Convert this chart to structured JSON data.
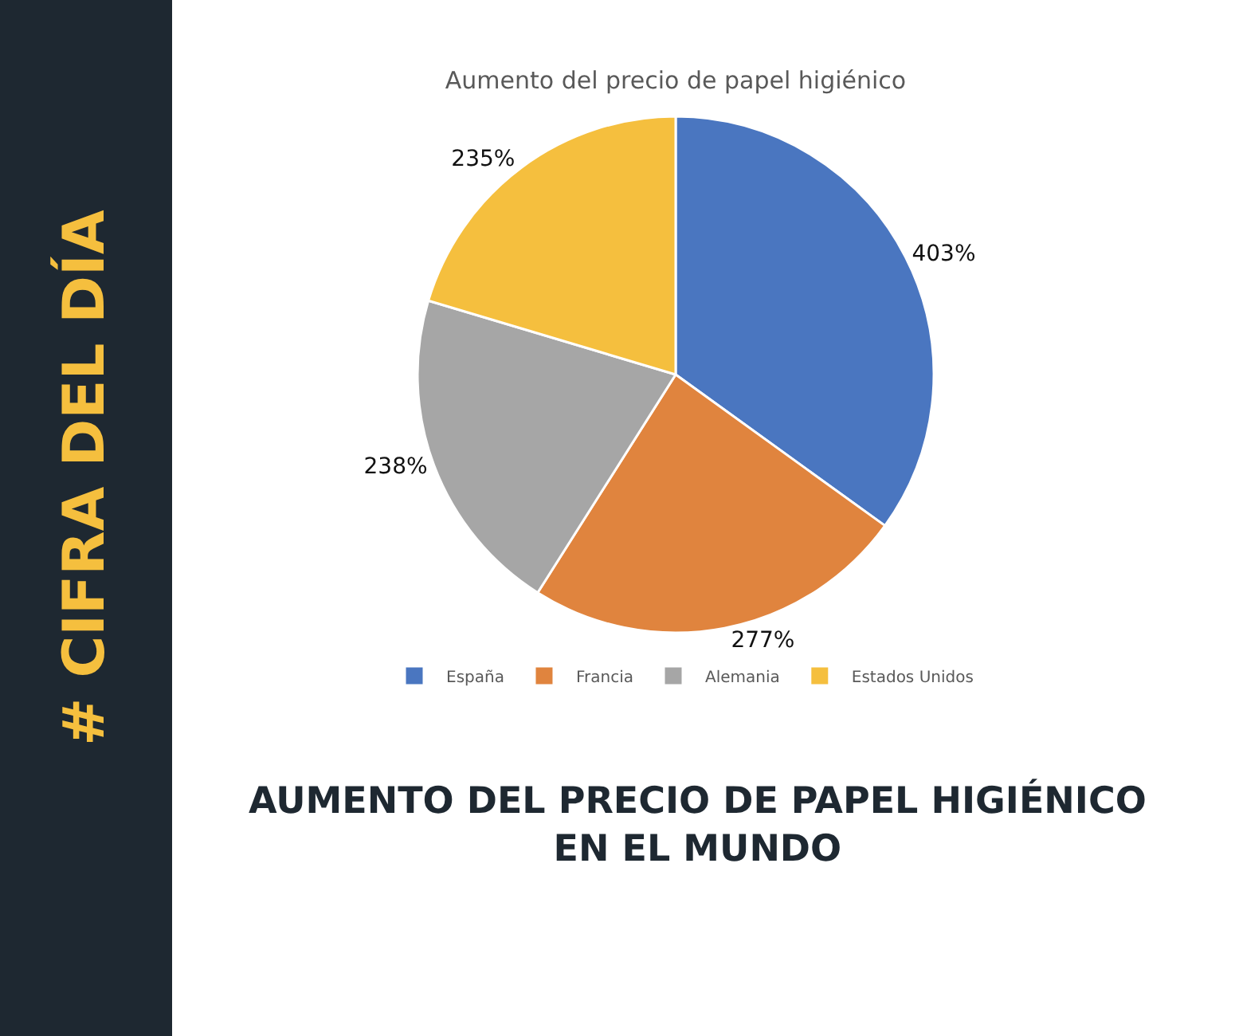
{
  "chart_data": {
    "type": "pie",
    "title": "Aumento del precio de papel higiénico",
    "categories": [
      "España",
      "Francia",
      "Alemania",
      "Estados Unidos"
    ],
    "values": [
      403,
      277,
      238,
      235
    ],
    "colors": [
      "#4a76c0",
      "#e0843e",
      "#a6a6a6",
      "#f5bf3e"
    ],
    "value_labels": [
      "403%",
      "277%",
      "238%",
      "235%"
    ],
    "legend": "bottom",
    "annotations": [
      "AUMENTO DEL PRECIO DE PAPEL HIGIÉNICO\nEN EL MUNDO",
      "# CIFRA DEL DÍA"
    ]
  }
}
